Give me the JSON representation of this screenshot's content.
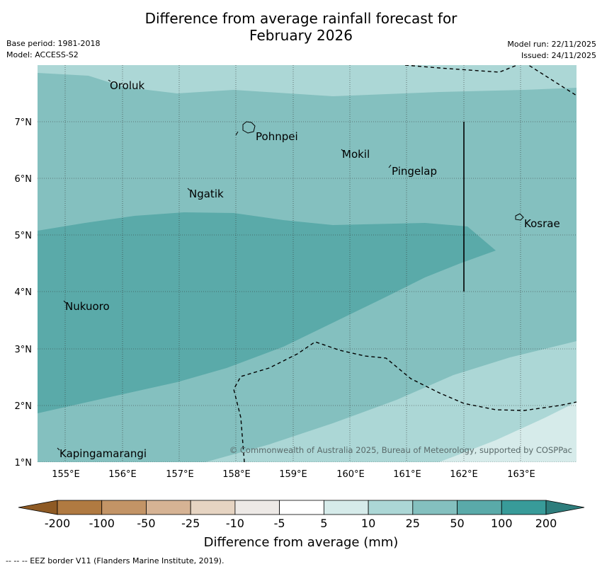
{
  "title": {
    "line1": "Difference from average rainfall forecast for",
    "line2": "February 2026"
  },
  "meta": {
    "base_period": "Base period: 1981-2018",
    "model": "Model: ACCESS-S2",
    "model_run": "Model run: 22/11/2025",
    "issued": "Issued: 24/11/2025"
  },
  "map": {
    "latitude_labels": [
      "7°N",
      "6°N",
      "5°N",
      "4°N",
      "3°N",
      "2°N",
      "1°N"
    ],
    "longitude_labels": [
      "155°E",
      "156°E",
      "157°E",
      "158°E",
      "159°E",
      "160°E",
      "161°E",
      "162°E",
      "163°E"
    ],
    "places": [
      "Oroluk",
      "Pohnpei",
      "Mokil",
      "Pingelap",
      "Ngatik",
      "Kosrae",
      "Nukuoro",
      "Kapingamarangi"
    ],
    "copyright": "© Commonwealth of Australia 2025, Bureau of Meteorology, supported by COSPPac"
  },
  "legend": {
    "ticks": [
      "-200",
      "-100",
      "-50",
      "-25",
      "-10",
      "-5",
      "5",
      "10",
      "25",
      "50",
      "100",
      "200"
    ],
    "colors": [
      "#8e5a24",
      "#b07a41",
      "#c39466",
      "#d6b394",
      "#e6d4c2",
      "#ede9e6",
      "#ffffff",
      "#d6ebea",
      "#acd7d6",
      "#84c0bf",
      "#5aaaa9",
      "#389b99",
      "#2e7d7c"
    ],
    "label": "Difference from average (mm)"
  },
  "footer": "--  --  -- EEZ border V11 (Flanders Marine Institute, 2019)."
}
